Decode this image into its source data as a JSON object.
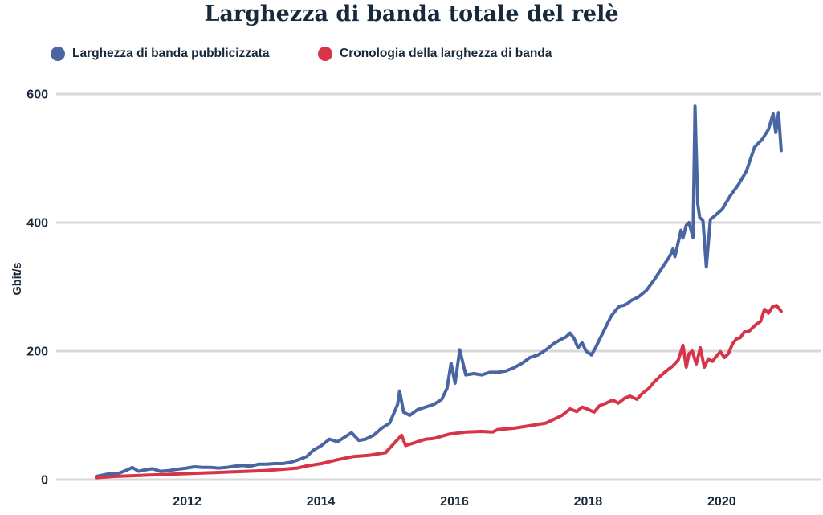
{
  "title": {
    "text": "Larghezza di banda totale del relè",
    "color": "#17293a"
  },
  "legend": {
    "position": "top-left",
    "items": [
      {
        "key": "advertised-bandwidth",
        "label": "Larghezza di banda pubblicizzata",
        "color": "#4966a3"
      },
      {
        "key": "bandwidth-history",
        "label": "Cronologia della larghezza di banda",
        "color": "#d63449"
      }
    ]
  },
  "chart_data": {
    "type": "line",
    "title": "Larghezza di banda totale del relè",
    "xlabel": "",
    "ylabel": "Gbit/s",
    "ylim": [
      0,
      600
    ],
    "xlim": [
      2010.04,
      2021.48
    ],
    "yticks": [
      0,
      200,
      400,
      600
    ],
    "xticks": [
      2012,
      2014,
      2016,
      2018,
      2020
    ],
    "grid": "horizontal-only",
    "grid_color": "#d8d8d8",
    "text_color": "#17293a",
    "legend_position": "top-left",
    "series": [
      {
        "name": "Larghezza di banda pubblicizzata",
        "key": "advertised-bandwidth",
        "color": "#4966a3",
        "points": [
          [
            2010.64,
            5
          ],
          [
            2010.82,
            9
          ],
          [
            2010.98,
            10
          ],
          [
            2011.1,
            15
          ],
          [
            2011.18,
            19
          ],
          [
            2011.27,
            13
          ],
          [
            2011.36,
            15
          ],
          [
            2011.48,
            17
          ],
          [
            2011.6,
            13
          ],
          [
            2011.72,
            14
          ],
          [
            2011.84,
            16
          ],
          [
            2011.99,
            18
          ],
          [
            2012.11,
            20
          ],
          [
            2012.23,
            19
          ],
          [
            2012.35,
            19
          ],
          [
            2012.47,
            18
          ],
          [
            2012.59,
            19
          ],
          [
            2012.71,
            21
          ],
          [
            2012.83,
            22
          ],
          [
            2012.95,
            21
          ],
          [
            2013.07,
            24
          ],
          [
            2013.19,
            24
          ],
          [
            2013.31,
            25
          ],
          [
            2013.43,
            25
          ],
          [
            2013.55,
            27
          ],
          [
            2013.67,
            31
          ],
          [
            2013.79,
            36
          ],
          [
            2013.89,
            46
          ],
          [
            2014.01,
            53
          ],
          [
            2014.13,
            63
          ],
          [
            2014.25,
            59
          ],
          [
            2014.37,
            67
          ],
          [
            2014.46,
            73
          ],
          [
            2014.57,
            61
          ],
          [
            2014.67,
            63
          ],
          [
            2014.79,
            69
          ],
          [
            2014.91,
            80
          ],
          [
            2015.03,
            88
          ],
          [
            2015.15,
            117
          ],
          [
            2015.18,
            138
          ],
          [
            2015.24,
            105
          ],
          [
            2015.33,
            100
          ],
          [
            2015.45,
            109
          ],
          [
            2015.57,
            113
          ],
          [
            2015.69,
            117
          ],
          [
            2015.81,
            125
          ],
          [
            2015.89,
            142
          ],
          [
            2015.95,
            181
          ],
          [
            2016.01,
            150
          ],
          [
            2016.08,
            202
          ],
          [
            2016.17,
            163
          ],
          [
            2016.29,
            165
          ],
          [
            2016.41,
            163
          ],
          [
            2016.53,
            167
          ],
          [
            2016.65,
            167
          ],
          [
            2016.77,
            169
          ],
          [
            2016.89,
            174
          ],
          [
            2017.01,
            181
          ],
          [
            2017.13,
            190
          ],
          [
            2017.25,
            194
          ],
          [
            2017.37,
            202
          ],
          [
            2017.49,
            212
          ],
          [
            2017.61,
            219
          ],
          [
            2017.67,
            222
          ],
          [
            2017.73,
            228
          ],
          [
            2017.79,
            220
          ],
          [
            2017.85,
            205
          ],
          [
            2017.91,
            213
          ],
          [
            2017.97,
            200
          ],
          [
            2018.05,
            194
          ],
          [
            2018.11,
            205
          ],
          [
            2018.17,
            218
          ],
          [
            2018.23,
            230
          ],
          [
            2018.29,
            243
          ],
          [
            2018.35,
            255
          ],
          [
            2018.41,
            263
          ],
          [
            2018.47,
            270
          ],
          [
            2018.53,
            271
          ],
          [
            2018.59,
            274
          ],
          [
            2018.65,
            279
          ],
          [
            2018.71,
            282
          ],
          [
            2018.75,
            284
          ],
          [
            2018.87,
            294
          ],
          [
            2018.99,
            311
          ],
          [
            2019.11,
            330
          ],
          [
            2019.23,
            349
          ],
          [
            2019.27,
            359
          ],
          [
            2019.3,
            347
          ],
          [
            2019.39,
            388
          ],
          [
            2019.42,
            376
          ],
          [
            2019.47,
            396
          ],
          [
            2019.51,
            400
          ],
          [
            2019.57,
            377
          ],
          [
            2019.6,
            581
          ],
          [
            2019.64,
            430
          ],
          [
            2019.67,
            408
          ],
          [
            2019.72,
            403
          ],
          [
            2019.77,
            331
          ],
          [
            2019.83,
            405
          ],
          [
            2019.89,
            410
          ],
          [
            2020.01,
            421
          ],
          [
            2020.13,
            442
          ],
          [
            2020.25,
            459
          ],
          [
            2020.37,
            480
          ],
          [
            2020.49,
            517
          ],
          [
            2020.61,
            530
          ],
          [
            2020.7,
            545
          ],
          [
            2020.77,
            569
          ],
          [
            2020.81,
            540
          ],
          [
            2020.85,
            571
          ],
          [
            2020.89,
            512
          ]
        ]
      },
      {
        "name": "Cronologia della larghezza di banda",
        "key": "bandwidth-history",
        "color": "#d63449",
        "points": [
          [
            2010.64,
            3
          ],
          [
            2010.9,
            5
          ],
          [
            2011.15,
            6
          ],
          [
            2011.4,
            7
          ],
          [
            2011.65,
            8
          ],
          [
            2011.9,
            9
          ],
          [
            2012.15,
            10
          ],
          [
            2012.4,
            11
          ],
          [
            2012.65,
            12
          ],
          [
            2012.9,
            13
          ],
          [
            2013.15,
            14
          ],
          [
            2013.4,
            16
          ],
          [
            2013.65,
            18
          ],
          [
            2013.77,
            21
          ],
          [
            2014.01,
            25
          ],
          [
            2014.25,
            31
          ],
          [
            2014.49,
            36
          ],
          [
            2014.73,
            38
          ],
          [
            2014.97,
            42
          ],
          [
            2015.12,
            59
          ],
          [
            2015.21,
            69
          ],
          [
            2015.27,
            53
          ],
          [
            2015.33,
            55
          ],
          [
            2015.45,
            59
          ],
          [
            2015.57,
            63
          ],
          [
            2015.69,
            64
          ],
          [
            2015.93,
            71
          ],
          [
            2016.17,
            74
          ],
          [
            2016.41,
            75
          ],
          [
            2016.57,
            74
          ],
          [
            2016.65,
            78
          ],
          [
            2016.89,
            80
          ],
          [
            2017.13,
            84
          ],
          [
            2017.37,
            88
          ],
          [
            2017.61,
            100
          ],
          [
            2017.73,
            110
          ],
          [
            2017.83,
            106
          ],
          [
            2017.91,
            113
          ],
          [
            2018.01,
            109
          ],
          [
            2018.09,
            105
          ],
          [
            2018.17,
            115
          ],
          [
            2018.27,
            119
          ],
          [
            2018.37,
            124
          ],
          [
            2018.45,
            119
          ],
          [
            2018.55,
            127
          ],
          [
            2018.63,
            130
          ],
          [
            2018.73,
            125
          ],
          [
            2018.81,
            134
          ],
          [
            2018.91,
            142
          ],
          [
            2018.99,
            152
          ],
          [
            2019.08,
            161
          ],
          [
            2019.17,
            169
          ],
          [
            2019.27,
            177
          ],
          [
            2019.35,
            186
          ],
          [
            2019.42,
            209
          ],
          [
            2019.47,
            175
          ],
          [
            2019.51,
            196
          ],
          [
            2019.56,
            200
          ],
          [
            2019.62,
            180
          ],
          [
            2019.68,
            205
          ],
          [
            2019.74,
            175
          ],
          [
            2019.8,
            188
          ],
          [
            2019.86,
            184
          ],
          [
            2019.92,
            192
          ],
          [
            2019.98,
            199
          ],
          [
            2020.04,
            190
          ],
          [
            2020.1,
            196
          ],
          [
            2020.16,
            211
          ],
          [
            2020.22,
            219
          ],
          [
            2020.28,
            221
          ],
          [
            2020.34,
            230
          ],
          [
            2020.4,
            230
          ],
          [
            2020.46,
            236
          ],
          [
            2020.52,
            242
          ],
          [
            2020.58,
            246
          ],
          [
            2020.64,
            265
          ],
          [
            2020.7,
            259
          ],
          [
            2020.76,
            269
          ],
          [
            2020.82,
            271
          ],
          [
            2020.89,
            262
          ]
        ]
      }
    ]
  }
}
